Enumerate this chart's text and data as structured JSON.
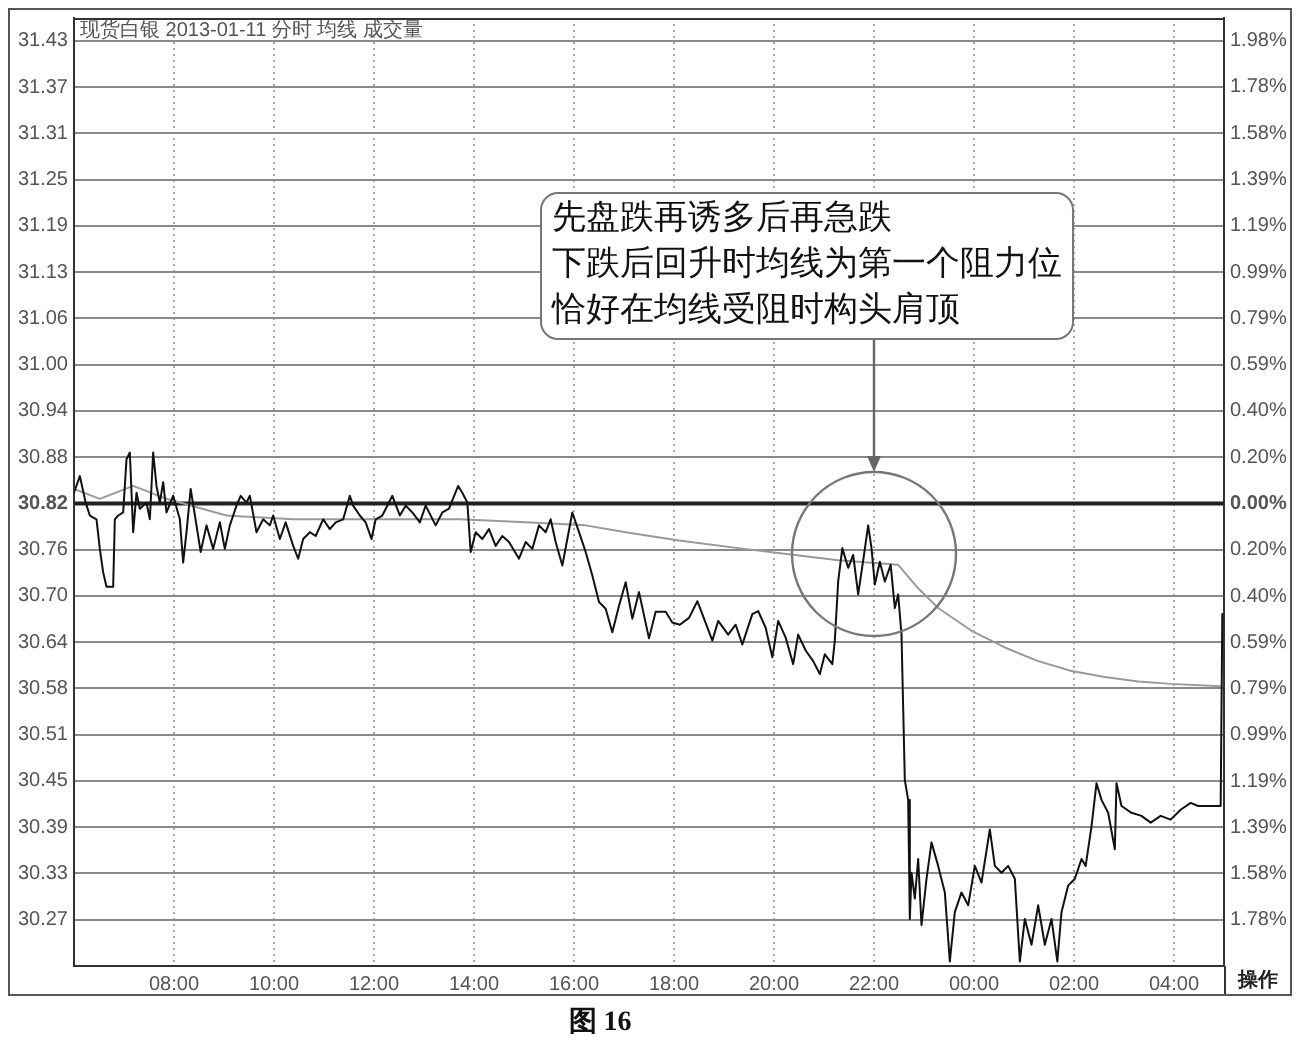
{
  "chart_data": {
    "type": "line",
    "title": "现货白银 2013-01-11 分时 均线 成交量",
    "annotations": [
      "先盘跌再诱多后再急跌",
      "下跌后回升时均线为第一个阻力位",
      "恰好在均线受阻时构头肩顶",
      "操作",
      "图 16"
    ],
    "xlim": [
      "2013-01-11T06:00",
      "2013-01-12T05:00"
    ],
    "xticks": [
      {
        "value": "2013-01-11T08:00",
        "label": "08:00"
      },
      {
        "value": "2013-01-11T10:00",
        "label": "10:00"
      },
      {
        "value": "2013-01-11T12:00",
        "label": "12:00"
      },
      {
        "value": "2013-01-11T14:00",
        "label": "14:00"
      },
      {
        "value": "2013-01-11T16:00",
        "label": "16:00"
      },
      {
        "value": "2013-01-11T18:00",
        "label": "18:00"
      },
      {
        "value": "2013-01-11T20:00",
        "label": "20:00"
      },
      {
        "value": "2013-01-11T22:00",
        "label": "22:00"
      },
      {
        "value": "2013-01-12T00:00",
        "label": "00:00"
      },
      {
        "value": "2013-01-12T02:00",
        "label": "02:00"
      },
      {
        "value": "2013-01-12T04:00",
        "label": "04:00"
      }
    ],
    "ylim": [
      30.21,
      31.46
    ],
    "yticks": [
      {
        "value": 30.271,
        "label": "30.27"
      },
      {
        "value": 30.332,
        "label": "30.33"
      },
      {
        "value": 30.393,
        "label": "30.39"
      },
      {
        "value": 30.454,
        "label": "30.45"
      },
      {
        "value": 30.515,
        "label": "30.51"
      },
      {
        "value": 30.576,
        "label": "30.58"
      },
      {
        "value": 30.637,
        "label": "30.64"
      },
      {
        "value": 30.698,
        "label": "30.70"
      },
      {
        "value": 30.759,
        "label": "30.76"
      },
      30.82,
      {
        "value": 30.881,
        "label": "30.88"
      },
      {
        "value": 30.942,
        "label": "30.94"
      },
      {
        "value": 31.003,
        "label": "31.00"
      },
      {
        "value": 31.064,
        "label": "31.06"
      },
      {
        "value": 31.125,
        "label": "31.13"
      },
      {
        "value": 31.186,
        "label": "31.19"
      },
      {
        "value": 31.247,
        "label": "31.25"
      },
      {
        "value": 31.308,
        "label": "31.31"
      },
      {
        "value": 31.369,
        "label": "31.37"
      },
      31.43
    ],
    "y2lim": [
      -1.979,
      2.077
    ],
    "y2ticks": [
      {
        "value": -1.782,
        "label": "1.78%"
      },
      {
        "value": -1.584,
        "label": "1.58%"
      },
      {
        "value": -1.386,
        "label": "1.39%"
      },
      {
        "value": -1.188,
        "label": "1.19%"
      },
      {
        "value": -0.99,
        "label": "0.99%"
      },
      {
        "value": -0.792,
        "label": "0.79%"
      },
      {
        "value": -0.594,
        "label": "0.59%"
      },
      {
        "value": -0.396,
        "label": "0.40%"
      },
      {
        "value": -0.198,
        "label": "0.20%"
      },
      {
        "value": 0,
        "label": "0.00%"
      },
      {
        "value": 0.198,
        "label": "0.20%"
      },
      {
        "value": 0.396,
        "label": "0.40%"
      },
      {
        "value": 0.594,
        "label": "0.59%"
      },
      {
        "value": 0.792,
        "label": "0.79%"
      },
      {
        "value": 0.99,
        "label": "0.99%"
      },
      {
        "value": 1.188,
        "label": "1.19%"
      },
      {
        "value": 1.386,
        "label": "1.39%"
      },
      {
        "value": 1.584,
        "label": "1.58%"
      },
      {
        "value": 1.782,
        "label": "1.78%"
      },
      {
        "value": 1.98,
        "label": "1.98%"
      }
    ],
    "ref_lines": [
      {
        "axis": "y",
        "value": 30.82,
        "color": "#222222"
      }
    ],
    "grid": true,
    "marker": "none",
    "series": [
      {
        "color": "#111111",
        "x": [
          "2013-01-11T06:00",
          "2013-01-11T06:07",
          "2013-01-11T06:14",
          "2013-01-11T06:19",
          "2013-01-11T06:27",
          "2013-01-11T06:31",
          "2013-01-11T06:35",
          "2013-01-11T06:39",
          "2013-01-11T06:47",
          "2013-01-11T06:49",
          "2013-01-11T06:53",
          "2013-01-11T06:59",
          "2013-01-11T07:03",
          "2013-01-11T07:07",
          "2013-01-11T07:11",
          "2013-01-11T07:15",
          "2013-01-11T07:19",
          "2013-01-11T07:27",
          "2013-01-11T07:31",
          "2013-01-11T07:35",
          "2013-01-11T07:39",
          "2013-01-11T07:43",
          "2013-01-11T07:47",
          "2013-01-11T07:51",
          "2013-01-11T07:59",
          "2013-01-11T08:07",
          "2013-01-11T08:11",
          "2013-01-11T08:15",
          "2013-01-11T08:20",
          "2013-01-11T08:27",
          "2013-01-11T08:32",
          "2013-01-11T08:39",
          "2013-01-11T08:47",
          "2013-01-11T08:55",
          "2013-01-11T09:01",
          "2013-01-11T09:07",
          "2013-01-11T09:15",
          "2013-01-11T09:20",
          "2013-01-11T09:27",
          "2013-01-11T09:31",
          "2013-01-11T09:39",
          "2013-01-11T09:47",
          "2013-01-11T09:55",
          "2013-01-11T09:59",
          "2013-01-11T10:07",
          "2013-01-11T10:14",
          "2013-01-11T10:23",
          "2013-01-11T10:29",
          "2013-01-11T10:35",
          "2013-01-11T10:43",
          "2013-01-11T10:50",
          "2013-01-11T10:59",
          "2013-01-11T11:07",
          "2013-01-11T11:14",
          "2013-01-11T11:23",
          "2013-01-11T11:31",
          "2013-01-11T11:35",
          "2013-01-11T11:43",
          "2013-01-11T11:50",
          "2013-01-11T11:57",
          "2013-01-11T12:02",
          "2013-01-11T12:10",
          "2013-01-11T12:22",
          "2013-01-11T12:31",
          "2013-01-11T12:38",
          "2013-01-11T12:46",
          "2013-01-11T12:55",
          "2013-01-11T13:02",
          "2013-01-11T13:14",
          "2013-01-11T13:22",
          "2013-01-11T13:30",
          "2013-01-11T13:41",
          "2013-01-11T13:46",
          "2013-01-11T13:52",
          "2013-01-11T13:56",
          "2013-01-11T14:02",
          "2013-01-11T14:10",
          "2013-01-11T14:18",
          "2013-01-11T14:26",
          "2013-01-11T14:34",
          "2013-01-11T14:42",
          "2013-01-11T14:54",
          "2013-01-11T15:02",
          "2013-01-11T15:10",
          "2013-01-11T15:18",
          "2013-01-11T15:26",
          "2013-01-11T15:32",
          "2013-01-11T15:38",
          "2013-01-11T15:46",
          "2013-01-11T15:52",
          "2013-01-11T15:58",
          "2013-01-11T16:06",
          "2013-01-11T16:14",
          "2013-01-11T16:22",
          "2013-01-11T16:30",
          "2013-01-11T16:38",
          "2013-01-11T16:46",
          "2013-01-11T16:54",
          "2013-01-11T17:02",
          "2013-01-11T17:10",
          "2013-01-11T17:18",
          "2013-01-11T17:30",
          "2013-01-11T17:38",
          "2013-01-11T17:50",
          "2013-01-11T17:58",
          "2013-01-11T18:07",
          "2013-01-11T18:18",
          "2013-01-11T18:28",
          "2013-01-11T18:34",
          "2013-01-11T18:46",
          "2013-01-11T18:53",
          "2013-01-11T19:05",
          "2013-01-11T19:14",
          "2013-01-11T19:22",
          "2013-01-11T19:34",
          "2013-01-11T19:41",
          "2013-01-11T19:50",
          "2013-01-11T19:58",
          "2013-01-11T20:05",
          "2013-01-11T20:14",
          "2013-01-11T20:23",
          "2013-01-11T20:29",
          "2013-01-11T20:38",
          "2013-01-11T20:47",
          "2013-01-11T20:55",
          "2013-01-11T21:01",
          "2013-01-11T21:10",
          "2013-01-11T21:13",
          "2013-01-11T21:17",
          "2013-01-11T21:22",
          "2013-01-11T21:29",
          "2013-01-11T21:35",
          "2013-01-11T21:41",
          "2013-01-11T21:48",
          "2013-01-11T21:53",
          "2013-01-11T21:57",
          "2013-01-11T22:01",
          "2013-01-11T22:07",
          "2013-01-11T22:13",
          "2013-01-11T22:20",
          "2013-01-11T22:25",
          "2013-01-11T22:29",
          "2013-01-11T22:33",
          "2013-01-11T22:37",
          "2013-01-11T22:41",
          "2013-01-11T22:43",
          "2013-01-11T22:45",
          "2013-01-11T22:49",
          "2013-01-11T22:53",
          "2013-01-11T22:57",
          "2013-01-11T23:03",
          "2013-01-11T23:09",
          "2013-01-11T23:17",
          "2013-01-11T23:25",
          "2013-01-11T23:31",
          "2013-01-11T23:37",
          "2013-01-11T23:45",
          "2013-01-11T23:53",
          "2013-01-12T00:01",
          "2013-01-12T00:09",
          "2013-01-12T00:19",
          "2013-01-12T00:25",
          "2013-01-12T00:33",
          "2013-01-12T00:41",
          "2013-01-12T00:49",
          "2013-01-12T00:55",
          "2013-01-12T01:01",
          "2013-01-12T01:09",
          "2013-01-12T01:17",
          "2013-01-12T01:25",
          "2013-01-12T01:33",
          "2013-01-12T01:40",
          "2013-01-12T01:45",
          "2013-01-12T01:53",
          "2013-01-12T02:01",
          "2013-01-12T02:09",
          "2013-01-12T02:14",
          "2013-01-12T02:21",
          "2013-01-12T02:27",
          "2013-01-12T02:33",
          "2013-01-12T02:41",
          "2013-01-12T02:49",
          "2013-01-12T02:51",
          "2013-01-12T02:57",
          "2013-01-12T03:09",
          "2013-01-12T03:21",
          "2013-01-12T03:32",
          "2013-01-12T03:44",
          "2013-01-12T03:56",
          "2013-01-12T04:08",
          "2013-01-12T04:20",
          "2013-01-12T04:29",
          "2013-01-12T04:56",
          "2013-01-12T04:58"
        ],
        "values": [
          30.834,
          30.856,
          30.821,
          30.804,
          30.799,
          30.76,
          30.729,
          30.71,
          30.71,
          30.799,
          30.804,
          30.808,
          30.878,
          30.887,
          30.782,
          30.834,
          30.813,
          30.821,
          30.799,
          30.887,
          30.843,
          30.821,
          30.848,
          30.808,
          30.83,
          30.799,
          30.742,
          30.782,
          30.839,
          30.791,
          30.756,
          30.791,
          30.76,
          30.795,
          30.76,
          30.791,
          30.817,
          30.83,
          30.821,
          30.83,
          30.782,
          30.799,
          30.791,
          30.804,
          30.773,
          30.795,
          30.764,
          30.747,
          30.773,
          30.782,
          30.777,
          30.799,
          30.786,
          30.795,
          30.799,
          30.83,
          30.817,
          30.804,
          30.795,
          30.773,
          30.799,
          30.804,
          30.83,
          30.804,
          30.817,
          30.808,
          30.795,
          30.817,
          30.791,
          30.808,
          30.813,
          30.843,
          30.834,
          30.821,
          30.756,
          30.782,
          30.773,
          30.786,
          30.764,
          30.777,
          30.769,
          30.747,
          30.769,
          30.76,
          30.791,
          30.782,
          30.799,
          30.769,
          30.738,
          30.773,
          30.808,
          30.782,
          30.756,
          30.725,
          30.69,
          30.681,
          30.65,
          30.685,
          30.716,
          30.668,
          30.703,
          30.642,
          30.677,
          30.677,
          30.663,
          30.66,
          30.669,
          30.691,
          30.674,
          30.639,
          30.665,
          30.647,
          30.66,
          30.634,
          30.674,
          30.678,
          30.656,
          30.617,
          30.665,
          30.643,
          30.608,
          30.647,
          30.626,
          30.612,
          30.595,
          30.621,
          30.608,
          30.639,
          30.717,
          30.761,
          30.735,
          30.752,
          30.7,
          30.752,
          30.791,
          30.761,
          30.713,
          30.743,
          30.717,
          30.739,
          30.682,
          30.7,
          30.647,
          30.455,
          30.429,
          30.272,
          30.333,
          30.299,
          30.351,
          30.264,
          30.325,
          30.373,
          30.342,
          30.307,
          30.216,
          30.281,
          30.307,
          30.29,
          30.342,
          30.32,
          30.39,
          30.342,
          30.333,
          30.342,
          30.325,
          30.216,
          30.272,
          30.238,
          30.29,
          30.238,
          30.272,
          30.216,
          30.281,
          30.316,
          30.325,
          30.351,
          30.342,
          30.394,
          30.451,
          30.429,
          30.412,
          30.364,
          30.451,
          30.421,
          30.412,
          30.408,
          30.399,
          30.408,
          30.403,
          30.416,
          30.425,
          30.421,
          30.421,
          30.674
        ]
      },
      {
        "color": "#9a9a9a",
        "x": [
          "2013-01-11T06:00",
          "2013-01-11T06:31",
          "2013-01-11T07:11",
          "2013-01-11T07:51",
          "2013-01-11T09:03",
          "2013-01-11T10:23",
          "2013-01-11T11:43",
          "2013-01-11T13:42",
          "2013-01-11T15:02",
          "2013-01-11T16:14",
          "2013-01-11T17:02",
          "2013-01-11T18:06",
          "2013-01-11T19:17",
          "2013-01-11T21:17",
          "2013-01-11T22:29",
          "2013-01-11T22:53",
          "2013-01-11T23:17",
          "2013-01-11T23:57",
          "2013-01-12T00:37",
          "2013-01-12T01:17",
          "2013-01-12T01:57",
          "2013-01-12T02:37",
          "2013-01-12T03:17",
          "2013-01-12T03:56",
          "2013-01-12T04:56"
        ],
        "values": [
          30.839,
          30.826,
          30.843,
          30.826,
          30.804,
          30.799,
          30.799,
          30.799,
          30.795,
          30.791,
          30.782,
          30.771,
          30.761,
          30.745,
          30.739,
          30.708,
          30.682,
          30.652,
          30.63,
          30.612,
          30.599,
          30.591,
          30.585,
          30.582,
          30.579
        ]
      }
    ]
  }
}
